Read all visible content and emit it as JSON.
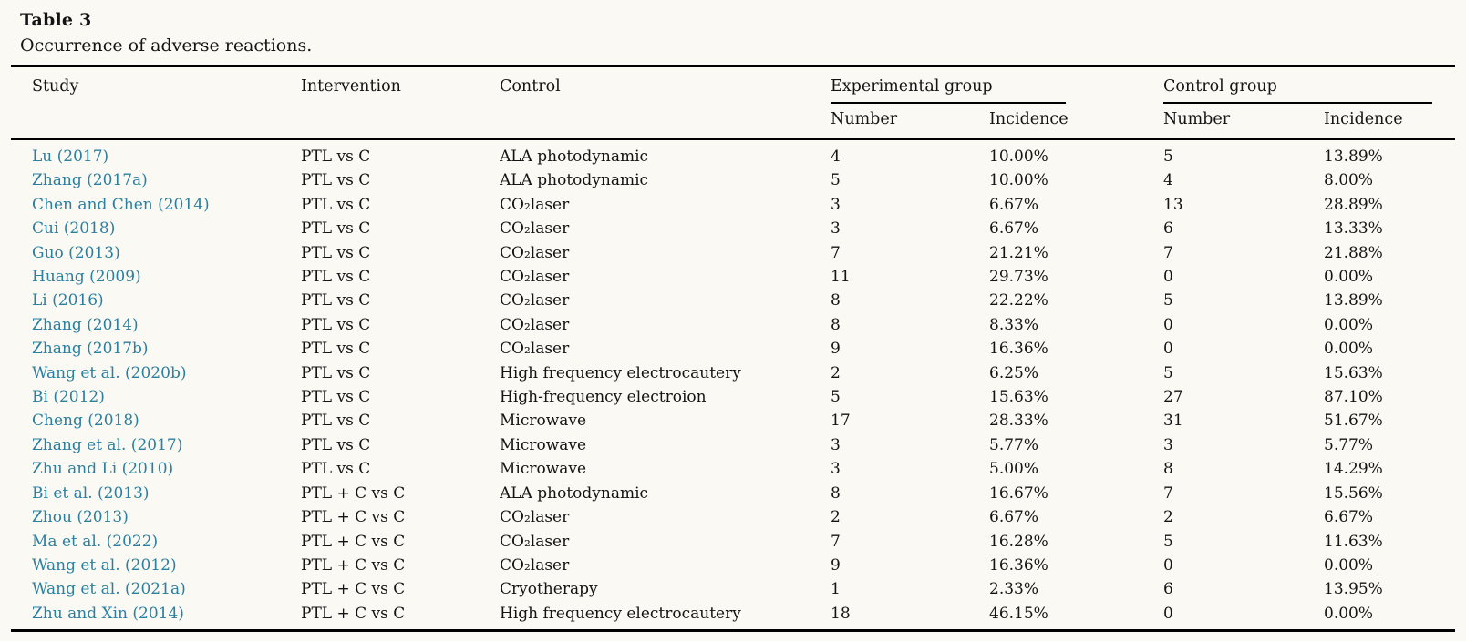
{
  "page": {
    "background": "#faf9f3"
  },
  "colors": {
    "link": "#2b7fa0",
    "text": "#141414",
    "rule": "#000000"
  },
  "table": {
    "label": "Table 3",
    "caption": "Occurrence of adverse reactions.",
    "columns": {
      "study": "Study",
      "intervention": "Intervention",
      "control": "Control",
      "exp_group": "Experimental group",
      "ctrl_group": "Control group",
      "number": "Number",
      "incidence": "Incidence"
    },
    "rows": [
      {
        "study": "Lu (2017)",
        "intervention": "PTL vs C",
        "control": "ALA photodynamic",
        "exp_number": "4",
        "exp_incidence": "10.00%",
        "ctrl_number": "5",
        "ctrl_incidence": "13.89%"
      },
      {
        "study": "Zhang (2017a)",
        "intervention": "PTL vs C",
        "control": "ALA photodynamic",
        "exp_number": "5",
        "exp_incidence": "10.00%",
        "ctrl_number": "4",
        "ctrl_incidence": "8.00%"
      },
      {
        "study": "Chen and Chen (2014)",
        "intervention": "PTL vs C",
        "control": "CO₂laser",
        "exp_number": "3",
        "exp_incidence": "6.67%",
        "ctrl_number": "13",
        "ctrl_incidence": "28.89%"
      },
      {
        "study": "Cui (2018)",
        "intervention": "PTL vs C",
        "control": "CO₂laser",
        "exp_number": "3",
        "exp_incidence": "6.67%",
        "ctrl_number": "6",
        "ctrl_incidence": "13.33%"
      },
      {
        "study": "Guo (2013)",
        "intervention": "PTL vs C",
        "control": "CO₂laser",
        "exp_number": "7",
        "exp_incidence": "21.21%",
        "ctrl_number": "7",
        "ctrl_incidence": "21.88%"
      },
      {
        "study": "Huang (2009)",
        "intervention": "PTL vs C",
        "control": "CO₂laser",
        "exp_number": "11",
        "exp_incidence": "29.73%",
        "ctrl_number": "0",
        "ctrl_incidence": "0.00%"
      },
      {
        "study": "Li (2016)",
        "intervention": "PTL vs C",
        "control": "CO₂laser",
        "exp_number": "8",
        "exp_incidence": "22.22%",
        "ctrl_number": "5",
        "ctrl_incidence": "13.89%"
      },
      {
        "study": "Zhang (2014)",
        "intervention": "PTL vs C",
        "control": "CO₂laser",
        "exp_number": "8",
        "exp_incidence": "8.33%",
        "ctrl_number": "0",
        "ctrl_incidence": "0.00%"
      },
      {
        "study": "Zhang (2017b)",
        "intervention": "PTL vs C",
        "control": "CO₂laser",
        "exp_number": "9",
        "exp_incidence": "16.36%",
        "ctrl_number": "0",
        "ctrl_incidence": "0.00%"
      },
      {
        "study": "Wang et al. (2020b)",
        "intervention": "PTL vs C",
        "control": "High frequency electrocautery",
        "exp_number": "2",
        "exp_incidence": "6.25%",
        "ctrl_number": "5",
        "ctrl_incidence": "15.63%"
      },
      {
        "study": "Bi (2012)",
        "intervention": "PTL vs C",
        "control": "High-frequency electroion",
        "exp_number": "5",
        "exp_incidence": "15.63%",
        "ctrl_number": "27",
        "ctrl_incidence": "87.10%"
      },
      {
        "study": "Cheng (2018)",
        "intervention": "PTL vs C",
        "control": "Microwave",
        "exp_number": "17",
        "exp_incidence": "28.33%",
        "ctrl_number": "31",
        "ctrl_incidence": "51.67%"
      },
      {
        "study": "Zhang et al. (2017)",
        "intervention": "PTL vs C",
        "control": "Microwave",
        "exp_number": "3",
        "exp_incidence": "5.77%",
        "ctrl_number": "3",
        "ctrl_incidence": "5.77%"
      },
      {
        "study": "Zhu and Li (2010)",
        "intervention": "PTL vs C",
        "control": "Microwave",
        "exp_number": "3",
        "exp_incidence": "5.00%",
        "ctrl_number": "8",
        "ctrl_incidence": "14.29%"
      },
      {
        "study": "Bi et al. (2013)",
        "intervention": "PTL + C vs C",
        "control": "ALA photodynamic",
        "exp_number": "8",
        "exp_incidence": "16.67%",
        "ctrl_number": "7",
        "ctrl_incidence": "15.56%"
      },
      {
        "study": "Zhou (2013)",
        "intervention": "PTL + C vs C",
        "control": "CO₂laser",
        "exp_number": "2",
        "exp_incidence": "6.67%",
        "ctrl_number": "2",
        "ctrl_incidence": "6.67%"
      },
      {
        "study": "Ma et al. (2022)",
        "intervention": "PTL + C vs C",
        "control": "CO₂laser",
        "exp_number": "7",
        "exp_incidence": "16.28%",
        "ctrl_number": "5",
        "ctrl_incidence": "11.63%"
      },
      {
        "study": "Wang et al. (2012)",
        "intervention": "PTL + C vs C",
        "control": "CO₂laser",
        "exp_number": "9",
        "exp_incidence": "16.36%",
        "ctrl_number": "0",
        "ctrl_incidence": "0.00%"
      },
      {
        "study": "Wang et al. (2021a)",
        "intervention": "PTL + C vs C",
        "control": "Cryotherapy",
        "exp_number": "1",
        "exp_incidence": "2.33%",
        "ctrl_number": "6",
        "ctrl_incidence": "13.95%"
      },
      {
        "study": "Zhu and Xin (2014)",
        "intervention": "PTL + C vs C",
        "control": "High frequency electrocautery",
        "exp_number": "18",
        "exp_incidence": "46.15%",
        "ctrl_number": "0",
        "ctrl_incidence": "0.00%"
      }
    ]
  }
}
